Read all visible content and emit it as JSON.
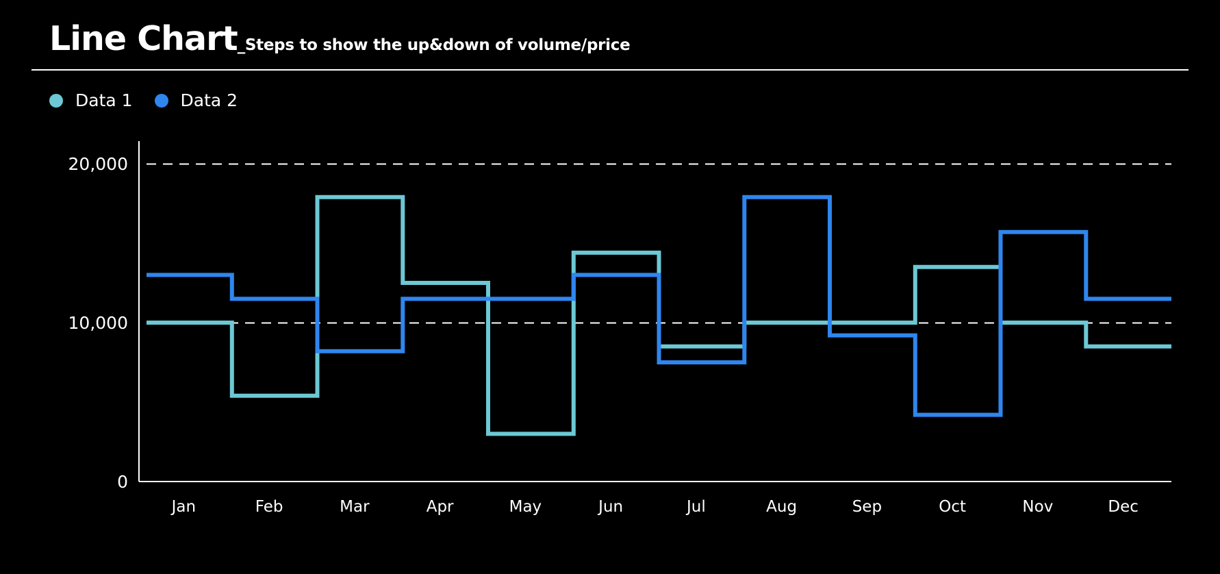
{
  "title": "Line Chart",
  "subtitle": "_Steps to show the up&down of volume/price",
  "legend": [
    {
      "label": "Data 1",
      "color": "#6cc8d4"
    },
    {
      "label": "Data 2",
      "color": "#2f86ee"
    }
  ],
  "chart_data": {
    "type": "line",
    "step": true,
    "title": "Line Chart",
    "subtitle": "_Steps to show the up&down of volume/price",
    "categories": [
      "Jan",
      "Feb",
      "Mar",
      "Apr",
      "May",
      "Jun",
      "Jul",
      "Aug",
      "Sep",
      "Oct",
      "Nov",
      "Dec"
    ],
    "series": [
      {
        "name": "Data 1",
        "color": "#6cc8d4",
        "values": [
          10000,
          5400,
          17900,
          12500,
          3000,
          14400,
          8500,
          10000,
          10000,
          13500,
          10000,
          8500
        ]
      },
      {
        "name": "Data 2",
        "color": "#2f86ee",
        "values": [
          13000,
          11500,
          8200,
          11500,
          11500,
          13000,
          7500,
          17900,
          9200,
          4200,
          15700,
          11500
        ]
      }
    ],
    "y_ticks": [
      0,
      10000,
      20000
    ],
    "y_tick_labels": [
      "0",
      "10,000",
      "20,000"
    ],
    "ylim": [
      0,
      21400
    ],
    "gridlines": [
      10000,
      20000
    ],
    "grid_style": "dashed",
    "legend_position": "top-left",
    "xlabel": "",
    "ylabel": ""
  }
}
